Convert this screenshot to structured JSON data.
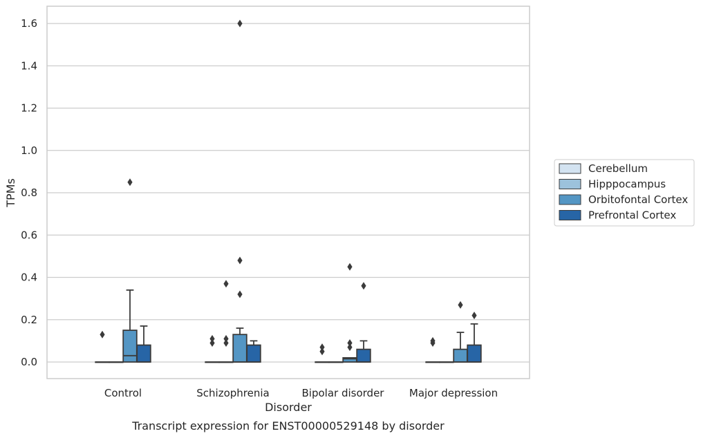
{
  "chart_data": {
    "type": "box",
    "title": "",
    "caption": "Transcript expression for ENST00000529148 by disorder",
    "xlabel": "Disorder",
    "ylabel": "TPMs",
    "ylim": [
      -0.08,
      1.68
    ],
    "yticks": [
      "0.0",
      "0.2",
      "0.4",
      "0.6",
      "0.8",
      "1.0",
      "1.2",
      "1.4",
      "1.6"
    ],
    "ytick_values": [
      0.0,
      0.2,
      0.4,
      0.6,
      0.8,
      1.0,
      1.2,
      1.4,
      1.6
    ],
    "grid": true,
    "legend_position": "right",
    "categories": [
      "Control",
      "Schizophrenia",
      "Bipolar disorder",
      "Major depression"
    ],
    "series": [
      {
        "name": "Cerebellum",
        "color": "#d3e3f1",
        "boxes": [
          {
            "q1": 0,
            "median": 0,
            "q3": 0,
            "whisker_low": 0,
            "whisker_high": 0,
            "outliers": [
              0.13
            ]
          },
          {
            "q1": 0,
            "median": 0,
            "q3": 0,
            "whisker_low": 0,
            "whisker_high": 0,
            "outliers": [
              0.09,
              0.11
            ]
          },
          {
            "q1": 0,
            "median": 0,
            "q3": 0,
            "whisker_low": 0,
            "whisker_high": 0,
            "outliers": [
              0.05,
              0.07
            ]
          },
          {
            "q1": 0,
            "median": 0,
            "q3": 0,
            "whisker_low": 0,
            "whisker_high": 0,
            "outliers": [
              0.09,
              0.1
            ]
          }
        ]
      },
      {
        "name": "Hipppocampus",
        "color": "#9cc2dc",
        "boxes": [
          {
            "q1": 0,
            "median": 0,
            "q3": 0,
            "whisker_low": 0,
            "whisker_high": 0,
            "outliers": []
          },
          {
            "q1": 0,
            "median": 0,
            "q3": 0,
            "whisker_low": 0,
            "whisker_high": 0,
            "outliers": [
              0.09,
              0.11,
              0.37
            ]
          },
          {
            "q1": 0,
            "median": 0,
            "q3": 0,
            "whisker_low": 0,
            "whisker_high": 0,
            "outliers": []
          },
          {
            "q1": 0,
            "median": 0,
            "q3": 0,
            "whisker_low": 0,
            "whisker_high": 0,
            "outliers": []
          }
        ]
      },
      {
        "name": "Orbitofontal Cortex",
        "color": "#5496c4",
        "boxes": [
          {
            "q1": 0,
            "median": 0.03,
            "q3": 0.15,
            "whisker_low": 0,
            "whisker_high": 0.34,
            "outliers": [
              0.85
            ]
          },
          {
            "q1": 0,
            "median": 0,
            "q3": 0.13,
            "whisker_low": 0,
            "whisker_high": 0.16,
            "outliers": [
              0.32,
              0.48,
              1.6
            ]
          },
          {
            "q1": 0,
            "median": 0.015,
            "q3": 0.02,
            "whisker_low": 0,
            "whisker_high": 0.02,
            "outliers": [
              0.07,
              0.09,
              0.45
            ]
          },
          {
            "q1": 0,
            "median": 0,
            "q3": 0.06,
            "whisker_low": 0,
            "whisker_high": 0.14,
            "outliers": [
              0.27
            ]
          }
        ]
      },
      {
        "name": "Prefrontal Cortex",
        "color": "#2765a6",
        "boxes": [
          {
            "q1": 0,
            "median": 0,
            "q3": 0.08,
            "whisker_low": 0,
            "whisker_high": 0.17,
            "outliers": []
          },
          {
            "q1": 0,
            "median": 0,
            "q3": 0.08,
            "whisker_low": 0,
            "whisker_high": 0.1,
            "outliers": []
          },
          {
            "q1": 0,
            "median": 0,
            "q3": 0.06,
            "whisker_low": 0,
            "whisker_high": 0.1,
            "outliers": [
              0.36
            ]
          },
          {
            "q1": 0,
            "median": 0,
            "q3": 0.08,
            "whisker_low": 0,
            "whisker_high": 0.18,
            "outliers": [
              0.22
            ]
          }
        ]
      }
    ],
    "colors": {
      "grid": "#cccccc",
      "frame": "#cccccc",
      "box_edge": "#3b3b3b",
      "outlier": "#3b3b3b"
    }
  }
}
